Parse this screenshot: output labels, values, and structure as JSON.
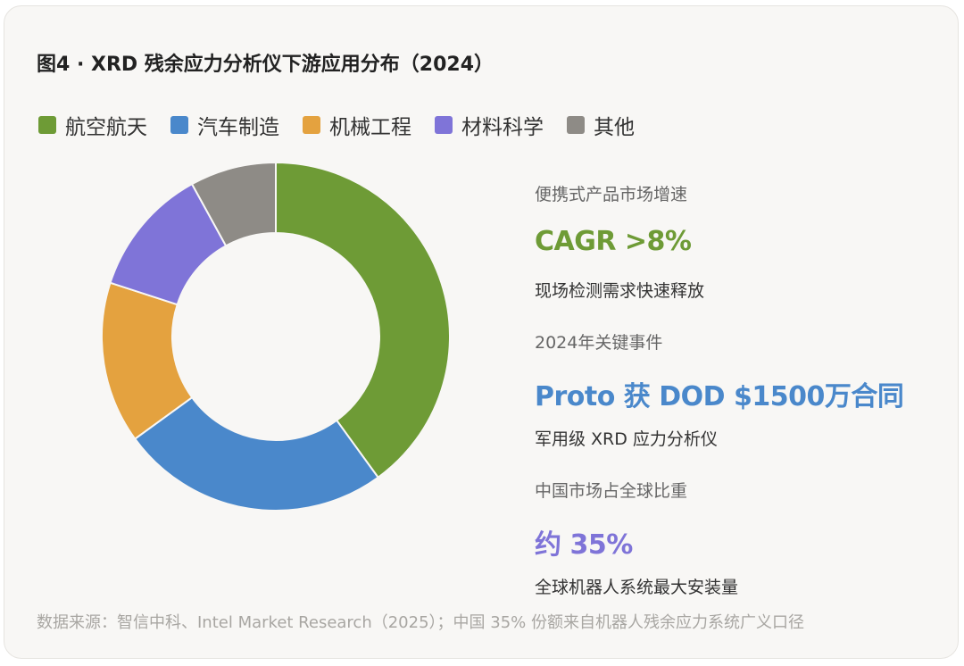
{
  "chart_data": {
    "type": "pie",
    "title": "图4 · XRD 残余应力分析仪下游应用分布（2024）",
    "legend_position": "top-left",
    "categories": [
      "航空航天",
      "汽车制造",
      "机械工程",
      "材料科学",
      "其他"
    ],
    "values": [
      40,
      25,
      15,
      12,
      8
    ],
    "colors": [
      "#6e9b36",
      "#4a88cb",
      "#e4a23f",
      "#7f74d8",
      "#8e8b86"
    ],
    "donut": true
  },
  "stats": [
    {
      "label": "便携式产品市场增速",
      "value": "CAGR >8%",
      "desc": "现场检测需求快速释放",
      "color": "#6e9b36"
    },
    {
      "label": "2024年关键事件",
      "value": "Proto 获 DOD $1500万合同",
      "desc": "军用级 XRD 应力分析仪",
      "color": "#4a88cb"
    },
    {
      "label": "中国市场占全球比重",
      "value": "约 35%",
      "desc": "全球机器人系统最大安装量",
      "color": "#7f74d8"
    }
  ],
  "source": "数据来源：智信中科、Intel Market Research（2025）；中国 35% 份额来自机器人残余应力系统广义口径"
}
